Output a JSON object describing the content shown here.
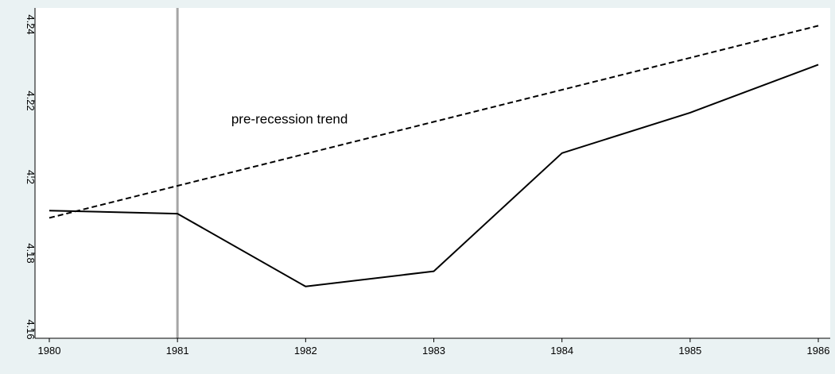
{
  "chart_data": {
    "type": "line",
    "title": "",
    "xlabel": "",
    "ylabel": "",
    "x": [
      1980,
      1981,
      1982,
      1983,
      1984,
      1985,
      1986
    ],
    "xlim": [
      1980,
      1986
    ],
    "ylim": [
      4.16,
      4.24
    ],
    "xticks": [
      1980,
      1981,
      1982,
      1983,
      1984,
      1985,
      1986
    ],
    "yticks": [
      4.16,
      4.18,
      4.2,
      4.22,
      4.24
    ],
    "ytick_labels": [
      "4.16",
      "4.18",
      "4.2",
      "4.22",
      "4.24"
    ],
    "series": [
      {
        "style": "solid",
        "color": "#000000",
        "values": [
          4.1912,
          4.1904,
          4.1713,
          4.1753,
          4.2063,
          4.2169,
          4.2295
        ]
      },
      {
        "style": "dashed",
        "color": "#000000",
        "values": [
          4.1893,
          4.1977,
          4.2061,
          4.2145,
          4.2229,
          4.2313,
          4.2397
        ]
      }
    ],
    "vline": {
      "x": 1981,
      "color": "#a6a6a6"
    },
    "annotations": [
      {
        "text": "pre-recession trend",
        "x": 1981.42,
        "y": 4.2141
      }
    ],
    "grid": false,
    "legend": "none",
    "colors": {
      "background": "#eaf2f3",
      "plot_background": "#ffffff"
    }
  }
}
